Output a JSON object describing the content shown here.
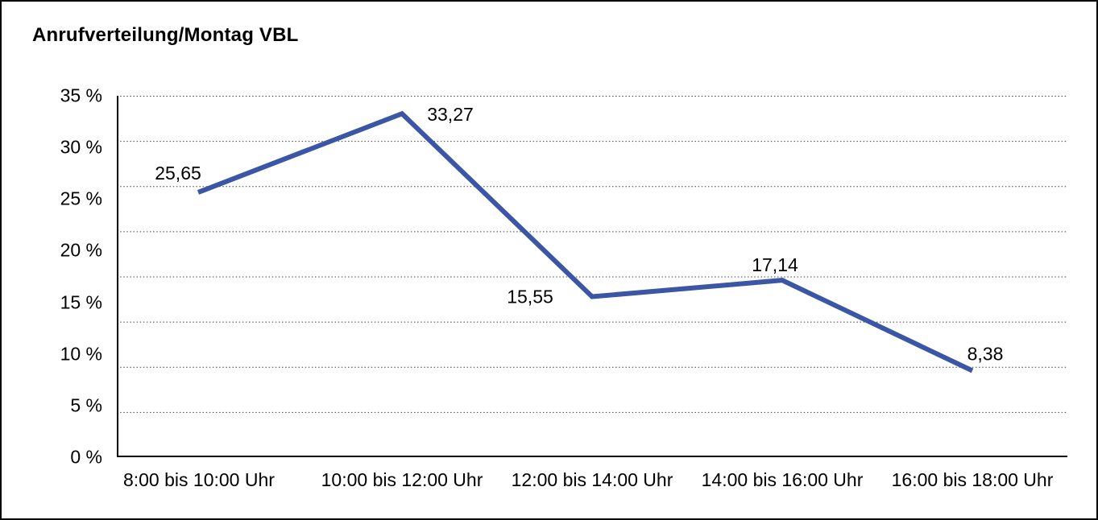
{
  "chart_data": {
    "type": "line",
    "title": "Anrufverteilung/Montag VBL",
    "categories": [
      "8:00 bis 10:00 Uhr",
      "10:00 bis 12:00 Uhr",
      "12:00 bis 14:00 Uhr",
      "14:00 bis 16:00 Uhr",
      "16:00 bis 18:00 Uhr"
    ],
    "values": [
      25.65,
      33.27,
      15.55,
      17.14,
      8.38
    ],
    "value_labels": [
      "25,65",
      "33,27",
      "15,55",
      "17,14",
      "8,38"
    ],
    "y_tick_labels": [
      "35 %",
      "30 %",
      "25 %",
      "20 %",
      "15 %",
      "10 %",
      "5 %",
      "0 %"
    ],
    "ylim": [
      0,
      35
    ],
    "xlabel": "",
    "ylabel": "",
    "grid": "horizontal-dotted",
    "gridline_count": 8,
    "legend": "none",
    "series_name": "Anrufverteilung Montag",
    "line_color": "#3A56A5",
    "axis_color": "#000000",
    "gridline_color": "#404040",
    "text_color": "#000000",
    "background_color": "#FFFFFF",
    "border_color": "#000000"
  }
}
